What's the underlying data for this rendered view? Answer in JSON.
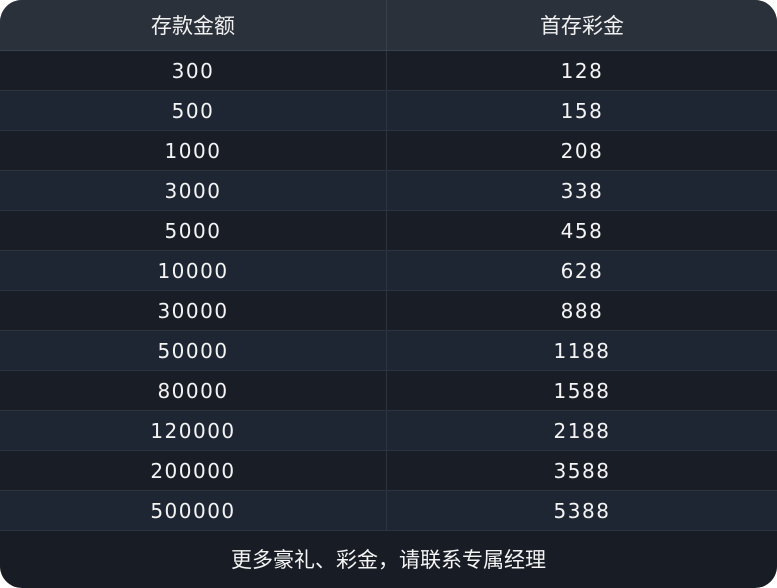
{
  "table": {
    "headers": [
      "存款金额",
      "首存彩金"
    ],
    "rows": [
      [
        "300",
        "128"
      ],
      [
        "500",
        "158"
      ],
      [
        "1000",
        "208"
      ],
      [
        "3000",
        "338"
      ],
      [
        "5000",
        "458"
      ],
      [
        "10000",
        "628"
      ],
      [
        "30000",
        "888"
      ],
      [
        "50000",
        "1188"
      ],
      [
        "80000",
        "1588"
      ],
      [
        "120000",
        "2188"
      ],
      [
        "200000",
        "3588"
      ],
      [
        "500000",
        "5388"
      ]
    ]
  },
  "footer": "更多豪礼、彩金，请联系专属经理",
  "colors": {
    "header_bg": "#2b313b",
    "row_dark": "#181d26",
    "row_light": "#1f2633",
    "text": "#f4f4f4"
  }
}
